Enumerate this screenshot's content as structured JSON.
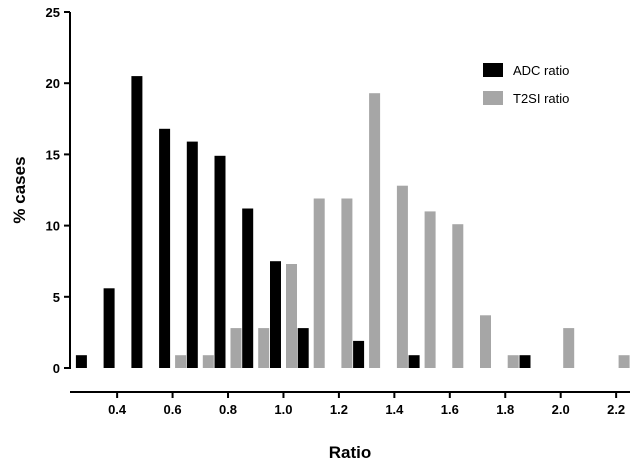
{
  "chart_data": {
    "type": "bar",
    "xlabel": "Ratio",
    "ylabel": "% cases",
    "ylim": [
      0,
      25
    ],
    "yticks": [
      0,
      5,
      10,
      15,
      20,
      25
    ],
    "xlim": [
      0.23,
      2.25
    ],
    "xticks": [
      "0.4",
      "0.6",
      "0.8",
      "1.0",
      "1.2",
      "1.4",
      "1.6",
      "1.8",
      "2.0",
      "2.2"
    ],
    "legend_position": "top-right",
    "grid": false,
    "series": [
      {
        "name": "ADC ratio",
        "color": "#000000",
        "x": [
          0.3,
          0.4,
          0.5,
          0.6,
          0.7,
          0.8,
          0.9,
          1.0,
          1.1,
          1.3,
          1.5,
          1.9
        ],
        "values": [
          0.9,
          5.6,
          20.5,
          16.8,
          15.9,
          14.9,
          11.2,
          7.5,
          2.8,
          1.9,
          0.9,
          0.9
        ]
      },
      {
        "name": "T2SI ratio",
        "color": "#a6a6a6",
        "x": [
          0.6,
          0.7,
          0.8,
          0.9,
          1.0,
          1.1,
          1.2,
          1.3,
          1.4,
          1.5,
          1.6,
          1.7,
          1.8,
          2.0,
          2.2
        ],
        "values": [
          0.9,
          0.9,
          2.8,
          2.8,
          7.3,
          11.9,
          11.9,
          19.3,
          12.8,
          11.0,
          10.1,
          3.7,
          0.9,
          2.8,
          0.9
        ]
      }
    ]
  }
}
